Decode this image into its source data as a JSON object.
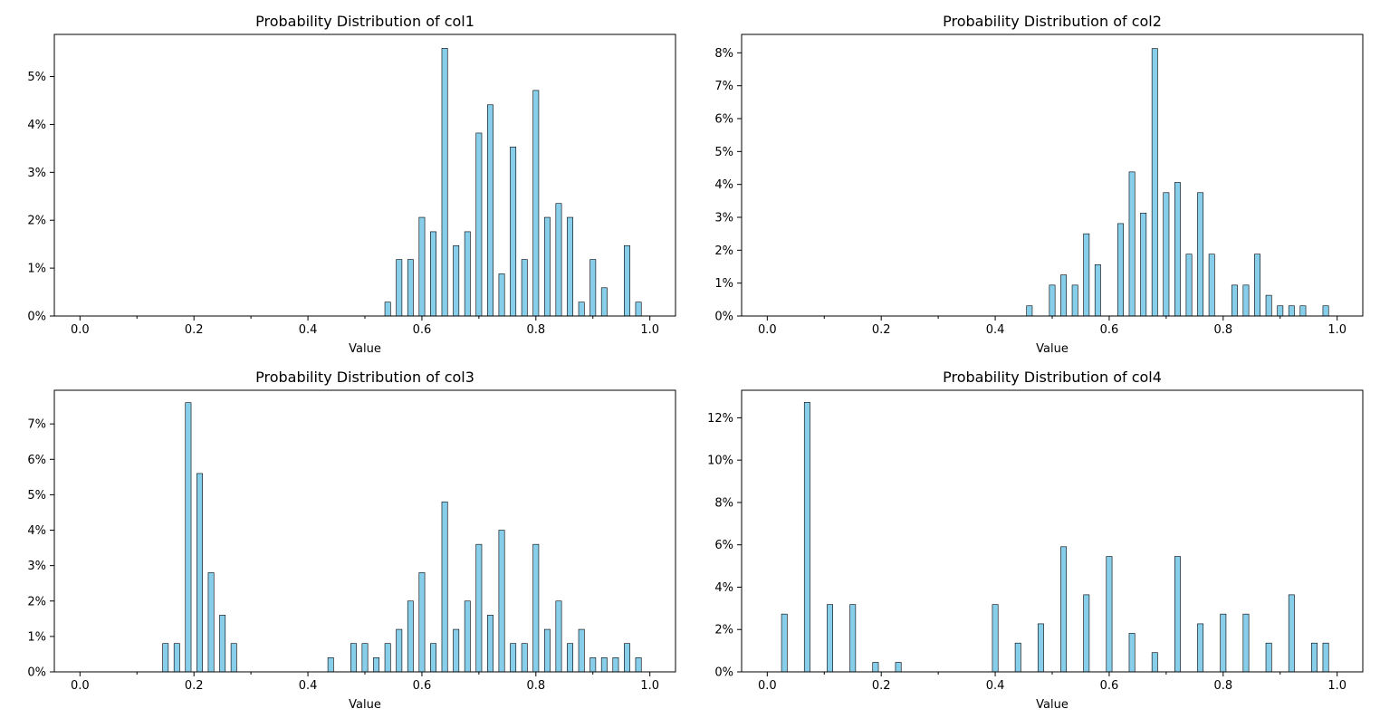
{
  "chart_data": [
    {
      "type": "bar",
      "title": "Probability Distribution of col1",
      "xlabel": "Value",
      "ylabel": "",
      "xlim": [
        -0.045,
        1.045
      ],
      "ylim": [
        0,
        5.88
      ],
      "xticks": [
        0.0,
        0.2,
        0.4,
        0.6,
        0.8,
        1.0
      ],
      "xtick_labels": [
        "0.0",
        "0.2",
        "0.4",
        "0.6",
        "0.8",
        "1.0"
      ],
      "minor_xticks": [
        0.1,
        0.3,
        0.5,
        0.7,
        0.9
      ],
      "yticks": [
        0,
        1,
        2,
        3,
        4,
        5
      ],
      "ytick_labels": [
        "0%",
        "1%",
        "2%",
        "3%",
        "4%",
        "5%"
      ],
      "bar_width": 0.01,
      "x": [
        0.54,
        0.56,
        0.58,
        0.6,
        0.62,
        0.64,
        0.66,
        0.68,
        0.7,
        0.72,
        0.74,
        0.76,
        0.78,
        0.8,
        0.82,
        0.84,
        0.86,
        0.88,
        0.9,
        0.92,
        0.96,
        0.98
      ],
      "values": [
        0.29,
        1.18,
        1.18,
        2.06,
        1.76,
        5.59,
        1.47,
        1.76,
        3.82,
        4.41,
        0.88,
        3.53,
        1.18,
        4.71,
        2.06,
        2.35,
        2.06,
        0.29,
        1.18,
        0.59,
        1.47,
        0.29
      ]
    },
    {
      "type": "bar",
      "title": "Probability Distribution of col2",
      "xlabel": "Value",
      "ylabel": "",
      "xlim": [
        -0.045,
        1.045
      ],
      "ylim": [
        0,
        8.56
      ],
      "xticks": [
        0.0,
        0.2,
        0.4,
        0.6,
        0.8,
        1.0
      ],
      "xtick_labels": [
        "0.0",
        "0.2",
        "0.4",
        "0.6",
        "0.8",
        "1.0"
      ],
      "minor_xticks": [
        0.1,
        0.3,
        0.5,
        0.7,
        0.9
      ],
      "yticks": [
        0,
        1,
        2,
        3,
        4,
        5,
        6,
        7,
        8
      ],
      "ytick_labels": [
        "0%",
        "1%",
        "2%",
        "3%",
        "4%",
        "5%",
        "6%",
        "7%",
        "8%"
      ],
      "bar_width": 0.01,
      "x": [
        0.46,
        0.5,
        0.52,
        0.54,
        0.56,
        0.58,
        0.62,
        0.64,
        0.66,
        0.68,
        0.7,
        0.72,
        0.74,
        0.76,
        0.78,
        0.82,
        0.84,
        0.86,
        0.88,
        0.9,
        0.92,
        0.94,
        0.98
      ],
      "values": [
        0.31,
        0.94,
        1.25,
        0.94,
        2.5,
        1.56,
        2.81,
        4.38,
        3.13,
        8.13,
        3.75,
        4.06,
        1.88,
        3.75,
        1.88,
        0.94,
        0.94,
        1.88,
        0.63,
        0.31,
        0.31,
        0.31,
        0.31
      ]
    },
    {
      "type": "bar",
      "title": "Probability Distribution of col3",
      "xlabel": "Value",
      "ylabel": "",
      "xlim": [
        -0.045,
        1.045
      ],
      "ylim": [
        0,
        7.95
      ],
      "xticks": [
        0.0,
        0.2,
        0.4,
        0.6,
        0.8,
        1.0
      ],
      "xtick_labels": [
        "0.0",
        "0.2",
        "0.4",
        "0.6",
        "0.8",
        "1.0"
      ],
      "minor_xticks": [
        0.1,
        0.3,
        0.5,
        0.7,
        0.9
      ],
      "yticks": [
        0,
        1,
        2,
        3,
        4,
        5,
        6,
        7
      ],
      "ytick_labels": [
        "0%",
        "1%",
        "2%",
        "3%",
        "4%",
        "5%",
        "6%",
        "7%"
      ],
      "bar_width": 0.01,
      "x": [
        0.15,
        0.17,
        0.19,
        0.21,
        0.23,
        0.25,
        0.27,
        0.44,
        0.48,
        0.5,
        0.52,
        0.54,
        0.56,
        0.58,
        0.6,
        0.62,
        0.64,
        0.66,
        0.68,
        0.7,
        0.72,
        0.74,
        0.76,
        0.78,
        0.8,
        0.82,
        0.84,
        0.86,
        0.88,
        0.9,
        0.92,
        0.94,
        0.96,
        0.98
      ],
      "values": [
        0.8,
        0.8,
        7.6,
        5.6,
        2.8,
        1.6,
        0.8,
        0.4,
        0.8,
        0.8,
        0.4,
        0.8,
        1.2,
        2.0,
        2.8,
        0.8,
        4.8,
        1.2,
        2.0,
        3.6,
        1.6,
        4.0,
        0.8,
        0.8,
        3.6,
        1.2,
        2.0,
        0.8,
        1.2,
        0.4,
        0.4,
        0.4,
        0.8,
        0.4
      ]
    },
    {
      "type": "bar",
      "title": "Probability Distribution of col4",
      "xlabel": "Value",
      "ylabel": "",
      "xlim": [
        -0.045,
        1.045
      ],
      "ylim": [
        0,
        13.3
      ],
      "xticks": [
        0.0,
        0.2,
        0.4,
        0.6,
        0.8,
        1.0
      ],
      "xtick_labels": [
        "0.0",
        "0.2",
        "0.4",
        "0.6",
        "0.8",
        "1.0"
      ],
      "minor_xticks": [
        0.1,
        0.3,
        0.5,
        0.7,
        0.9
      ],
      "yticks": [
        0,
        2,
        4,
        6,
        8,
        10,
        12
      ],
      "ytick_labels": [
        "0%",
        "2%",
        "4%",
        "6%",
        "8%",
        "10%",
        "12%"
      ],
      "bar_width": 0.01,
      "x": [
        0.03,
        0.07,
        0.11,
        0.15,
        0.19,
        0.23,
        0.4,
        0.44,
        0.48,
        0.52,
        0.56,
        0.6,
        0.64,
        0.68,
        0.72,
        0.76,
        0.8,
        0.84,
        0.88,
        0.92,
        0.96,
        0.98
      ],
      "values": [
        2.73,
        12.73,
        3.18,
        3.18,
        0.45,
        0.45,
        3.18,
        1.36,
        2.27,
        5.91,
        3.64,
        5.45,
        1.82,
        0.91,
        5.45,
        2.27,
        2.73,
        2.73,
        1.36,
        3.64,
        1.36,
        1.36
      ]
    }
  ]
}
